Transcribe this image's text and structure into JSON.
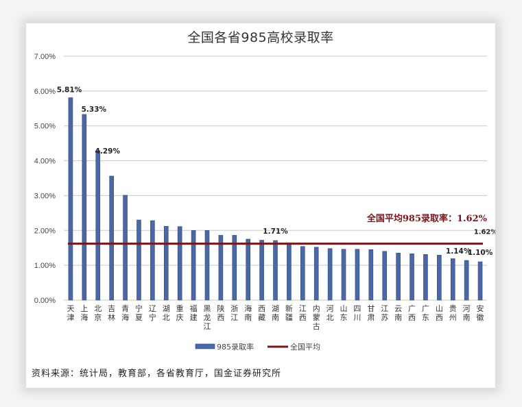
{
  "chart_data": {
    "type": "bar",
    "title": "全国各省985高校录取率",
    "xlabel": "",
    "ylabel": "",
    "ylim": [
      0,
      7
    ],
    "y_ticks": [
      "0.00%",
      "1.00%",
      "2.00%",
      "3.00%",
      "4.00%",
      "5.00%",
      "6.00%",
      "7.00%"
    ],
    "grid": true,
    "legend_position": "bottom",
    "categories": [
      "天津",
      "上海",
      "北京",
      "吉林",
      "青海",
      "宁夏",
      "辽宁",
      "湖北",
      "重庆",
      "福建",
      "黑龙江",
      "陕西",
      "浙江",
      "海南",
      "西藏",
      "湖南",
      "新疆",
      "江西",
      "内蒙古",
      "河北",
      "山东",
      "四川",
      "甘肃",
      "江苏",
      "云南",
      "广西",
      "广东",
      "山西",
      "贵州",
      "河南",
      "安徽"
    ],
    "series": [
      {
        "name": "985录取率",
        "type": "bar",
        "color": "#4a67a6",
        "values": [
          5.81,
          5.33,
          4.29,
          3.56,
          3.01,
          2.3,
          2.28,
          2.12,
          2.11,
          2.0,
          2.0,
          1.86,
          1.86,
          1.75,
          1.72,
          1.71,
          1.64,
          1.54,
          1.52,
          1.48,
          1.46,
          1.46,
          1.45,
          1.4,
          1.35,
          1.33,
          1.31,
          1.29,
          1.19,
          1.14,
          1.1
        ]
      },
      {
        "name": "全国平均",
        "type": "line",
        "color": "#7b1416",
        "values": [
          1.62
        ]
      }
    ],
    "data_labels": [
      {
        "category": "天津",
        "text": "5.81%"
      },
      {
        "category": "上海",
        "text": "5.33%"
      },
      {
        "category": "北京",
        "text": "4.29%"
      },
      {
        "category": "湖南",
        "text": "1.71%"
      },
      {
        "category": "河南",
        "text": "1.14%"
      },
      {
        "category": "安徽",
        "text": "1.10%"
      },
      {
        "category": "安徽",
        "text": "1.62%",
        "series": "全国平均"
      }
    ],
    "annotations": [
      {
        "text": "全国平均985录取率：1.62%",
        "color": "#7b1416"
      }
    ]
  },
  "legend": {
    "bar_label": "985录取率",
    "line_label": "全国平均"
  },
  "source": "资料来源：统计局，教育部，各省教育厅，国金证券研究所",
  "colors": {
    "bar": "#4a67a6",
    "bar_edge": "#2f4a80",
    "average_line": "#7b1416",
    "grid": "#c8c8c8"
  }
}
